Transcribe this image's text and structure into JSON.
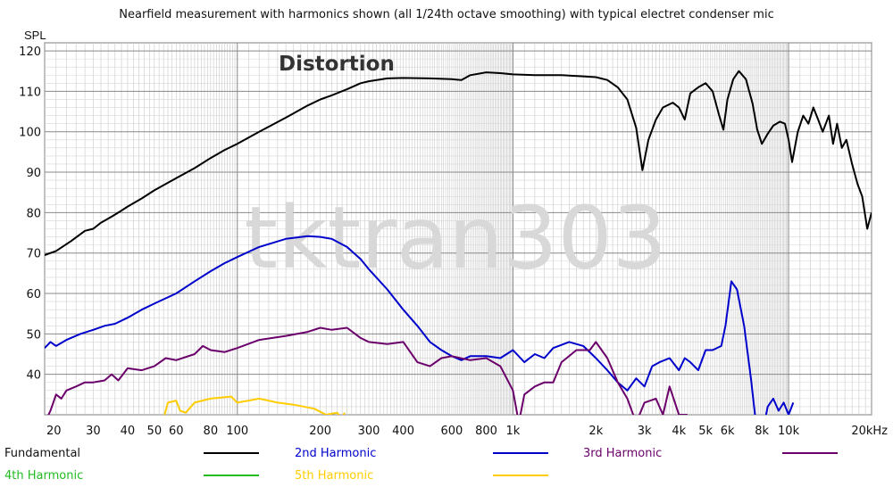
{
  "chart_data": {
    "type": "line",
    "title": "Nearfield measurement with harmonics shown (all 1/24th octave smoothing) with typical electret condenser mic",
    "ylabel": "SPL",
    "xlabel": "",
    "x_scale": "log",
    "xlim": [
      20,
      20000
    ],
    "ylim": [
      30,
      122
    ],
    "x_ticks": [
      {
        "v": 20,
        "label": "20"
      },
      {
        "v": 30,
        "label": "30"
      },
      {
        "v": 40,
        "label": "40"
      },
      {
        "v": 50,
        "label": "50"
      },
      {
        "v": 60,
        "label": "60"
      },
      {
        "v": 80,
        "label": "80"
      },
      {
        "v": 100,
        "label": "100"
      },
      {
        "v": 200,
        "label": "200"
      },
      {
        "v": 300,
        "label": "300"
      },
      {
        "v": 400,
        "label": "400"
      },
      {
        "v": 600,
        "label": "600"
      },
      {
        "v": 800,
        "label": "800"
      },
      {
        "v": 1000,
        "label": "1k"
      },
      {
        "v": 2000,
        "label": "2k"
      },
      {
        "v": 3000,
        "label": "3k"
      },
      {
        "v": 4000,
        "label": "4k"
      },
      {
        "v": 5000,
        "label": "5k"
      },
      {
        "v": 6000,
        "label": "6k"
      },
      {
        "v": 8000,
        "label": "8k"
      },
      {
        "v": 10000,
        "label": "10k"
      },
      {
        "v": 20000,
        "label": "20kHz"
      }
    ],
    "y_ticks": [
      40,
      50,
      60,
      70,
      80,
      90,
      100,
      110,
      120
    ],
    "grid": true,
    "legend_position": "bottom",
    "annotation": "Distortion",
    "watermark": "tktran303",
    "series": [
      {
        "name": "Fundamental",
        "color": "#000000",
        "points": [
          [
            20,
            69.5
          ],
          [
            22,
            70.5
          ],
          [
            25,
            73
          ],
          [
            28,
            75.5
          ],
          [
            30,
            76
          ],
          [
            32,
            77.5
          ],
          [
            35,
            79
          ],
          [
            38,
            80.5
          ],
          [
            40,
            81.5
          ],
          [
            45,
            83.5
          ],
          [
            50,
            85.5
          ],
          [
            60,
            88.5
          ],
          [
            70,
            91
          ],
          [
            80,
            93.5
          ],
          [
            90,
            95.5
          ],
          [
            100,
            97
          ],
          [
            120,
            100
          ],
          [
            150,
            103.5
          ],
          [
            180,
            106.5
          ],
          [
            200,
            108
          ],
          [
            220,
            109
          ],
          [
            250,
            110.5
          ],
          [
            280,
            112
          ],
          [
            300,
            112.5
          ],
          [
            350,
            113.2
          ],
          [
            400,
            113.3
          ],
          [
            500,
            113.2
          ],
          [
            600,
            113
          ],
          [
            650,
            112.8
          ],
          [
            700,
            114
          ],
          [
            800,
            114.7
          ],
          [
            900,
            114.5
          ],
          [
            1000,
            114.2
          ],
          [
            1200,
            114
          ],
          [
            1500,
            114
          ],
          [
            1800,
            113.7
          ],
          [
            2000,
            113.5
          ],
          [
            2200,
            112.8
          ],
          [
            2400,
            111
          ],
          [
            2600,
            108
          ],
          [
            2800,
            101
          ],
          [
            2950,
            90.5
          ],
          [
            3100,
            98
          ],
          [
            3300,
            103
          ],
          [
            3500,
            106
          ],
          [
            3800,
            107.2
          ],
          [
            4000,
            106
          ],
          [
            4200,
            103
          ],
          [
            4400,
            109.5
          ],
          [
            4700,
            111
          ],
          [
            5000,
            112
          ],
          [
            5300,
            110
          ],
          [
            5600,
            104
          ],
          [
            5800,
            100.5
          ],
          [
            6000,
            108
          ],
          [
            6300,
            113
          ],
          [
            6600,
            115
          ],
          [
            7000,
            113
          ],
          [
            7400,
            107
          ],
          [
            7700,
            100.5
          ],
          [
            8000,
            97
          ],
          [
            8400,
            99.5
          ],
          [
            8800,
            101.5
          ],
          [
            9300,
            102.5
          ],
          [
            9700,
            102
          ],
          [
            10000,
            98
          ],
          [
            10300,
            92.5
          ],
          [
            10800,
            100
          ],
          [
            11300,
            104
          ],
          [
            11800,
            102
          ],
          [
            12300,
            106
          ],
          [
            12800,
            103
          ],
          [
            13300,
            100
          ],
          [
            14000,
            104
          ],
          [
            14500,
            97
          ],
          [
            15000,
            102
          ],
          [
            15600,
            96
          ],
          [
            16200,
            98
          ],
          [
            17000,
            92
          ],
          [
            17800,
            87
          ],
          [
            18500,
            84
          ],
          [
            19300,
            76
          ],
          [
            20000,
            80
          ]
        ]
      },
      {
        "name": "2nd Harmonic",
        "color": "#0000cc",
        "points": [
          [
            20,
            46.5
          ],
          [
            21,
            48
          ],
          [
            22,
            47
          ],
          [
            24,
            48.5
          ],
          [
            27,
            50
          ],
          [
            30,
            51
          ],
          [
            33,
            52
          ],
          [
            36,
            52.5
          ],
          [
            40,
            54
          ],
          [
            45,
            56
          ],
          [
            50,
            57.5
          ],
          [
            60,
            60
          ],
          [
            70,
            63
          ],
          [
            80,
            65.5
          ],
          [
            90,
            67.5
          ],
          [
            100,
            69
          ],
          [
            120,
            71.5
          ],
          [
            150,
            73.5
          ],
          [
            180,
            74.2
          ],
          [
            200,
            74
          ],
          [
            220,
            73.5
          ],
          [
            250,
            71.5
          ],
          [
            280,
            68.5
          ],
          [
            300,
            66
          ],
          [
            350,
            61
          ],
          [
            400,
            56
          ],
          [
            450,
            52
          ],
          [
            500,
            48
          ],
          [
            550,
            46
          ],
          [
            600,
            44.5
          ],
          [
            650,
            43.5
          ],
          [
            700,
            44.5
          ],
          [
            800,
            44.5
          ],
          [
            900,
            44
          ],
          [
            1000,
            46
          ],
          [
            1100,
            43
          ],
          [
            1200,
            45
          ],
          [
            1300,
            44
          ],
          [
            1400,
            46.5
          ],
          [
            1600,
            48
          ],
          [
            1800,
            47
          ],
          [
            2000,
            44
          ],
          [
            2200,
            41
          ],
          [
            2400,
            38
          ],
          [
            2600,
            36
          ],
          [
            2800,
            39
          ],
          [
            3000,
            37
          ],
          [
            3200,
            42
          ],
          [
            3400,
            43
          ],
          [
            3700,
            44
          ],
          [
            4000,
            41
          ],
          [
            4200,
            44
          ],
          [
            4400,
            43
          ],
          [
            4700,
            41
          ],
          [
            5000,
            46
          ],
          [
            5300,
            46
          ],
          [
            5700,
            47
          ],
          [
            5900,
            52
          ],
          [
            6200,
            63
          ],
          [
            6500,
            61
          ],
          [
            6900,
            52
          ],
          [
            7300,
            39
          ],
          [
            7700,
            25
          ],
          [
            8000,
            25
          ],
          [
            8400,
            32
          ],
          [
            8800,
            34
          ],
          [
            9200,
            31
          ],
          [
            9600,
            33
          ],
          [
            10000,
            30
          ],
          [
            10400,
            33
          ]
        ]
      },
      {
        "name": "3rd Harmonic",
        "color": "#6b006b",
        "points": [
          [
            20,
            28
          ],
          [
            21,
            31
          ],
          [
            22,
            35
          ],
          [
            23,
            34
          ],
          [
            24,
            36
          ],
          [
            26,
            37
          ],
          [
            28,
            38
          ],
          [
            30,
            38
          ],
          [
            33,
            38.5
          ],
          [
            35,
            40
          ],
          [
            37,
            38.5
          ],
          [
            40,
            41.5
          ],
          [
            45,
            41
          ],
          [
            50,
            42
          ],
          [
            55,
            44
          ],
          [
            60,
            43.5
          ],
          [
            70,
            45
          ],
          [
            75,
            47
          ],
          [
            80,
            46
          ],
          [
            90,
            45.5
          ],
          [
            100,
            46.5
          ],
          [
            120,
            48.5
          ],
          [
            150,
            49.5
          ],
          [
            180,
            50.5
          ],
          [
            200,
            51.5
          ],
          [
            220,
            51
          ],
          [
            250,
            51.5
          ],
          [
            280,
            49
          ],
          [
            300,
            48
          ],
          [
            350,
            47.5
          ],
          [
            400,
            48
          ],
          [
            450,
            43
          ],
          [
            500,
            42
          ],
          [
            550,
            44
          ],
          [
            600,
            44.5
          ],
          [
            700,
            43.5
          ],
          [
            800,
            44
          ],
          [
            900,
            42
          ],
          [
            1000,
            36
          ],
          [
            1050,
            28
          ],
          [
            1100,
            35
          ],
          [
            1200,
            37
          ],
          [
            1300,
            38
          ],
          [
            1400,
            38
          ],
          [
            1500,
            43
          ],
          [
            1700,
            46
          ],
          [
            1900,
            46
          ],
          [
            2000,
            48
          ],
          [
            2200,
            44
          ],
          [
            2400,
            38
          ],
          [
            2600,
            34
          ],
          [
            2800,
            28
          ],
          [
            3000,
            33
          ],
          [
            3300,
            34
          ],
          [
            3500,
            30
          ],
          [
            3700,
            37
          ],
          [
            4000,
            30
          ],
          [
            4300,
            30
          ]
        ]
      },
      {
        "name": "4th Harmonic",
        "color": "#22bb22",
        "points": []
      },
      {
        "name": "5th Harmonic",
        "color": "#ffcc00",
        "points": [
          [
            54,
            29
          ],
          [
            56,
            33
          ],
          [
            60,
            33.5
          ],
          [
            62,
            31
          ],
          [
            65,
            30.5
          ],
          [
            70,
            33
          ],
          [
            80,
            34
          ],
          [
            95,
            34.5
          ],
          [
            100,
            33
          ],
          [
            110,
            33.5
          ],
          [
            120,
            34
          ],
          [
            140,
            33
          ],
          [
            160,
            32.5
          ],
          [
            190,
            31.5
          ],
          [
            210,
            30
          ],
          [
            230,
            30.5
          ],
          [
            240,
            29
          ],
          [
            245,
            30.5
          ]
        ]
      }
    ]
  }
}
